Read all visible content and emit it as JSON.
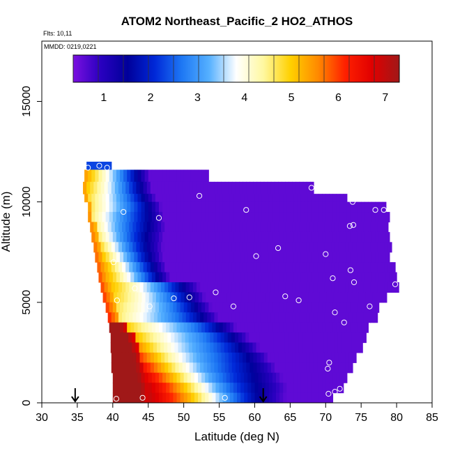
{
  "chart_data": {
    "type": "heatmap",
    "title": "ATOM2 Northeast_Pacific_2 HO2_ATHOS",
    "annotations": [
      "Flts: 10,11",
      "MMDD: 0219,0221"
    ],
    "xlabel": "Latitude (deg N)",
    "ylabel": "Altitude (m)",
    "xlim": [
      30,
      85
    ],
    "ylim": [
      0,
      18000
    ],
    "x_ticks": [
      30,
      35,
      40,
      45,
      50,
      55,
      60,
      65,
      70,
      75,
      80,
      85
    ],
    "y_ticks": [
      0,
      5000,
      10000,
      15000
    ],
    "colorbar": {
      "range": [
        0.35,
        7.3
      ],
      "ticks": [
        1,
        2,
        3,
        4,
        5,
        6,
        7
      ],
      "colors": [
        "#7b10e0",
        "#2a00c0",
        "#00009a",
        "#0028d8",
        "#1e78f4",
        "#55b0ff",
        "#ffffff",
        "#fff8a0",
        "#ffd000",
        "#ff8a00",
        "#ff2000",
        "#e00000",
        "#a01818"
      ]
    },
    "markers": [
      {
        "label": "arrow",
        "lat": 34.7,
        "alt": 0
      },
      {
        "label": "arrow",
        "lat": 61.2,
        "alt": 0
      }
    ],
    "sample_points": [
      {
        "lat": 36.5,
        "alt": 11700
      },
      {
        "lat": 38.1,
        "alt": 11800
      },
      {
        "lat": 39.2,
        "alt": 11700
      },
      {
        "lat": 52.2,
        "alt": 10300
      },
      {
        "lat": 68.0,
        "alt": 10700
      },
      {
        "lat": 41.5,
        "alt": 9500
      },
      {
        "lat": 46.5,
        "alt": 9200
      },
      {
        "lat": 58.8,
        "alt": 9600
      },
      {
        "lat": 73.8,
        "alt": 10000
      },
      {
        "lat": 77.0,
        "alt": 9600
      },
      {
        "lat": 78.2,
        "alt": 9600
      },
      {
        "lat": 73.4,
        "alt": 8800
      },
      {
        "lat": 73.9,
        "alt": 8850
      },
      {
        "lat": 63.3,
        "alt": 7700
      },
      {
        "lat": 60.2,
        "alt": 7300
      },
      {
        "lat": 70.0,
        "alt": 7400
      },
      {
        "lat": 40.1,
        "alt": 7000
      },
      {
        "lat": 73.5,
        "alt": 6600
      },
      {
        "lat": 71.0,
        "alt": 6200
      },
      {
        "lat": 74.0,
        "alt": 6000
      },
      {
        "lat": 79.8,
        "alt": 5900
      },
      {
        "lat": 43.1,
        "alt": 5700
      },
      {
        "lat": 54.5,
        "alt": 5500
      },
      {
        "lat": 64.3,
        "alt": 5300
      },
      {
        "lat": 66.2,
        "alt": 5100
      },
      {
        "lat": 48.6,
        "alt": 5200
      },
      {
        "lat": 50.8,
        "alt": 5250
      },
      {
        "lat": 40.6,
        "alt": 5100
      },
      {
        "lat": 57.0,
        "alt": 4800
      },
      {
        "lat": 45.2,
        "alt": 4800
      },
      {
        "lat": 76.2,
        "alt": 4800
      },
      {
        "lat": 71.3,
        "alt": 4500
      },
      {
        "lat": 72.6,
        "alt": 4000
      },
      {
        "lat": 70.5,
        "alt": 2000
      },
      {
        "lat": 70.3,
        "alt": 1700
      },
      {
        "lat": 72.0,
        "alt": 700
      },
      {
        "lat": 70.4,
        "alt": 450
      },
      {
        "lat": 71.3,
        "alt": 550
      },
      {
        "lat": 40.5,
        "alt": 200
      },
      {
        "lat": 44.2,
        "alt": 250
      },
      {
        "lat": 55.8,
        "alt": 250
      }
    ],
    "bands": [
      {
        "alt": [
          11600,
          12000
        ],
        "lat": [
          36.3,
          39.5
        ],
        "lat_max_value": 2.3,
        "lat_min_value": 2.3
      },
      {
        "alt": [
          11000,
          11600
        ],
        "lat": [
          36.0,
          53.5
        ],
        "peak_lat": 36.5
      },
      {
        "alt": [
          10400,
          11000
        ],
        "lat": [
          35.8,
          68.0
        ],
        "peak_lat": 36.3
      },
      {
        "alt": [
          10000,
          10400
        ],
        "lat": [
          36.0,
          72.8
        ],
        "peak_lat": 36.5
      },
      {
        "alt": [
          9500,
          10000
        ],
        "lat": [
          36.5,
          78.5
        ],
        "peak_lat": 37.0
      },
      {
        "alt": [
          9000,
          9500
        ],
        "lat": [
          36.5,
          78.8
        ],
        "peak_lat": 37.2
      },
      {
        "alt": [
          8500,
          9000
        ],
        "lat": [
          36.8,
          78.8
        ],
        "peak_lat": 37.6
      },
      {
        "alt": [
          8000,
          8500
        ],
        "lat": [
          37.0,
          79.0
        ],
        "peak_lat": 37.9
      },
      {
        "alt": [
          7500,
          8000
        ],
        "lat": [
          37.3,
          79.0
        ],
        "peak_lat": 38.3
      },
      {
        "alt": [
          7000,
          7500
        ],
        "lat": [
          37.5,
          79.0
        ],
        "peak_lat": 38.6
      },
      {
        "alt": [
          6500,
          7000
        ],
        "lat": [
          37.8,
          79.5
        ],
        "peak_lat": 39.0
      },
      {
        "alt": [
          6000,
          6500
        ],
        "lat": [
          38.0,
          80.0
        ],
        "peak_lat": 39.3
      },
      {
        "alt": [
          5500,
          6000
        ],
        "lat": [
          38.3,
          80.0
        ],
        "peak_lat": 39.7
      },
      {
        "alt": [
          5000,
          5500
        ],
        "lat": [
          38.6,
          78.5
        ],
        "peak_lat": 40.1
      },
      {
        "alt": [
          4500,
          5000
        ],
        "lat": [
          39.0,
          77.5
        ],
        "peak_lat": 40.5
      },
      {
        "alt": [
          4000,
          4500
        ],
        "lat": [
          39.3,
          77.0
        ],
        "peak_lat": 41.0
      },
      {
        "alt": [
          3500,
          4000
        ],
        "lat": [
          39.5,
          76.0
        ],
        "peak_lat": 42.0
      },
      {
        "alt": [
          3000,
          3500
        ],
        "lat": [
          39.7,
          75.5
        ],
        "peak_lat": 43.0
      },
      {
        "alt": [
          2500,
          3000
        ],
        "lat": [
          39.7,
          75.0
        ],
        "peak_lat": 43.5
      },
      {
        "alt": [
          2000,
          2500
        ],
        "lat": [
          39.8,
          74.0
        ],
        "peak_lat": 44.0
      },
      {
        "alt": [
          1500,
          2000
        ],
        "lat": [
          39.8,
          73.5
        ],
        "peak_lat": 44.3
      },
      {
        "alt": [
          1000,
          1500
        ],
        "lat": [
          40.0,
          73.0
        ],
        "peak_lat": 44.6
      },
      {
        "alt": [
          500,
          1000
        ],
        "lat": [
          40.0,
          72.3
        ],
        "peak_lat": 45.0
      },
      {
        "alt": [
          0,
          500
        ],
        "lat": [
          40.0,
          71.0
        ],
        "peak_lat": 45.0
      }
    ]
  }
}
